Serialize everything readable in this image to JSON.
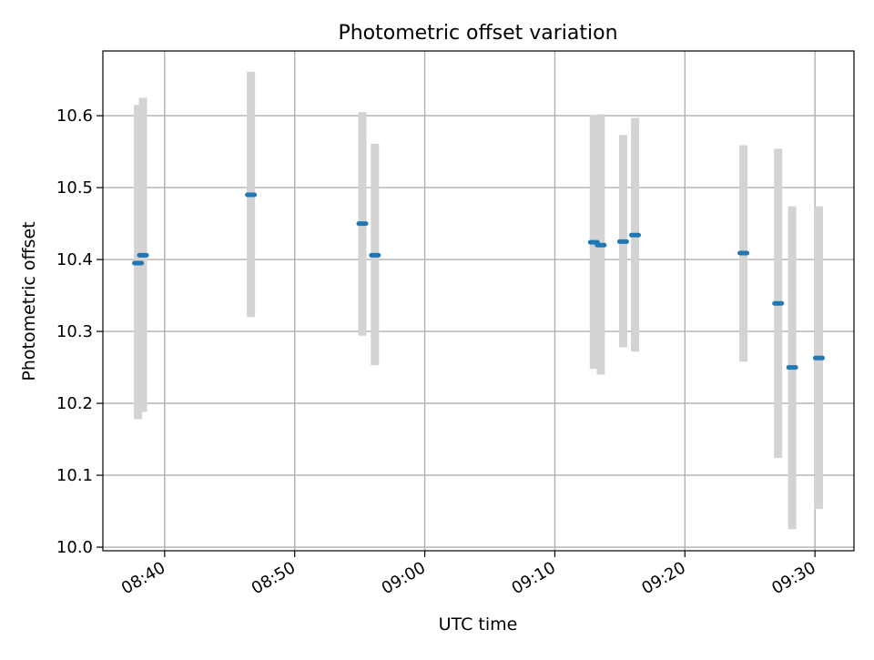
{
  "chart_data": {
    "type": "scatter",
    "title": "Photometric offset variation",
    "xlabel": "UTC time",
    "ylabel": "Photometric offset",
    "x_unit": "HH:MM UTC",
    "xlim": [
      "08:35:15",
      "09:33:00"
    ],
    "ylim": [
      9.995,
      10.69
    ],
    "x_ticks": [
      "08:40",
      "08:50",
      "09:00",
      "09:10",
      "09:20",
      "09:30"
    ],
    "y_ticks": [
      "10.0",
      "10.1",
      "10.2",
      "10.3",
      "10.4",
      "10.5",
      "10.6"
    ],
    "y_tick_values": [
      10.0,
      10.1,
      10.2,
      10.3,
      10.4,
      10.5,
      10.6
    ],
    "grid": true,
    "legend": "none",
    "colors": {
      "point": "#1f77b4",
      "error_bar": "#d3d3d3",
      "grid": "#b0b0b0",
      "axes": "#000000"
    },
    "points": [
      {
        "x": "08:37:57",
        "y": 10.395,
        "y_low": 10.178,
        "y_high": 10.615
      },
      {
        "x": "08:38:20",
        "y": 10.406,
        "y_low": 10.188,
        "y_high": 10.625
      },
      {
        "x": "08:46:38",
        "y": 10.49,
        "y_low": 10.32,
        "y_high": 10.661
      },
      {
        "x": "08:55:12",
        "y": 10.45,
        "y_low": 10.294,
        "y_high": 10.605
      },
      {
        "x": "08:56:10",
        "y": 10.406,
        "y_low": 10.253,
        "y_high": 10.561
      },
      {
        "x": "09:13:00",
        "y": 10.424,
        "y_low": 10.248,
        "y_high": 10.601
      },
      {
        "x": "09:13:32",
        "y": 10.42,
        "y_low": 10.24,
        "y_high": 10.602
      },
      {
        "x": "09:15:15",
        "y": 10.425,
        "y_low": 10.278,
        "y_high": 10.573
      },
      {
        "x": "09:16:10",
        "y": 10.434,
        "y_low": 10.272,
        "y_high": 10.597
      },
      {
        "x": "09:24:30",
        "y": 10.409,
        "y_low": 10.258,
        "y_high": 10.559
      },
      {
        "x": "09:27:10",
        "y": 10.339,
        "y_low": 10.124,
        "y_high": 10.554
      },
      {
        "x": "09:28:15",
        "y": 10.25,
        "y_low": 10.025,
        "y_high": 10.474
      },
      {
        "x": "09:30:18",
        "y": 10.263,
        "y_low": 10.053,
        "y_high": 10.474
      }
    ]
  }
}
